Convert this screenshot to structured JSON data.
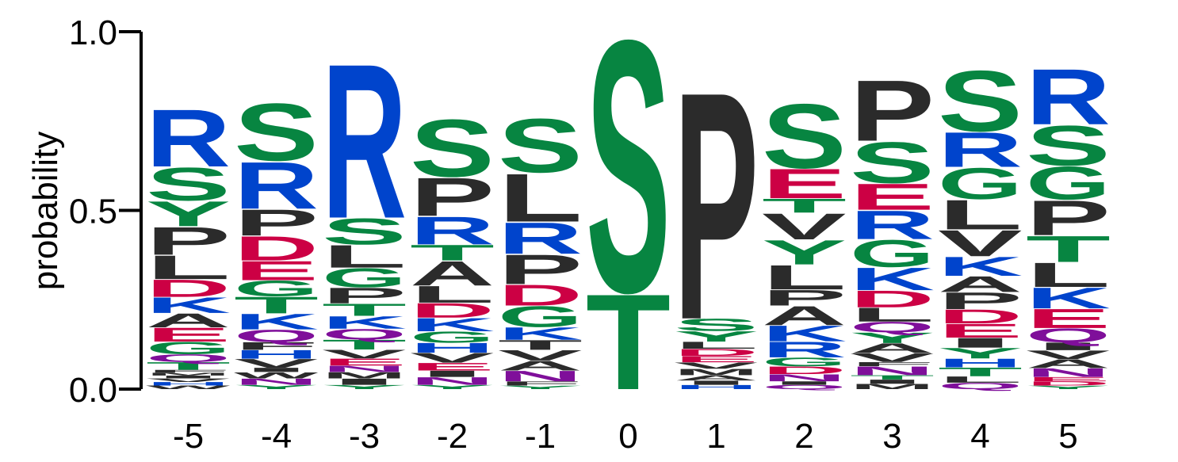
{
  "chart_data": {
    "type": "sequence-logo",
    "ylabel": "probability",
    "ylim": [
      0,
      1
    ],
    "yticks": [
      "0.0",
      "0.5",
      "1.0"
    ],
    "yticks_values": [
      0,
      0.5,
      1
    ],
    "colors": {
      "basic": "#0044cc",
      "polar": "#078541",
      "hydrophobic": "#2b2b2b",
      "acidic": "#cc0044",
      "amide": "#7f0f9a"
    },
    "positions": [
      {
        "label": "-5",
        "stack": [
          [
            "W",
            "hydrophobic",
            0.01
          ],
          [
            "H",
            "basic",
            0.01
          ],
          [
            "V",
            "hydrophobic",
            0.01
          ],
          [
            "I",
            "hydrophobic",
            0.008
          ],
          [
            "M",
            "hydrophobic",
            0.008
          ],
          [
            "F",
            "hydrophobic",
            0.008
          ],
          [
            "T",
            "polar",
            0.022
          ],
          [
            "Q",
            "amide",
            0.022
          ],
          [
            "G",
            "polar",
            0.035
          ],
          [
            "E",
            "acidic",
            0.04
          ],
          [
            "A",
            "hydrophobic",
            0.04
          ],
          [
            "K",
            "basic",
            0.045
          ],
          [
            "D",
            "acidic",
            0.05
          ],
          [
            "L",
            "hydrophobic",
            0.068
          ],
          [
            "P",
            "hydrophobic",
            0.08
          ],
          [
            "Y",
            "polar",
            0.072
          ],
          [
            "S",
            "polar",
            0.095
          ],
          [
            "R",
            "basic",
            0.165
          ]
        ]
      },
      {
        "label": "-4",
        "stack": [
          [
            "Y",
            "polar",
            0.012
          ],
          [
            "N",
            "amide",
            0.018
          ],
          [
            "W",
            "hydrophobic",
            0.018
          ],
          [
            "I",
            "hydrophobic",
            0.012
          ],
          [
            "V",
            "hydrophobic",
            0.025
          ],
          [
            "H",
            "basic",
            0.025
          ],
          [
            "F",
            "hydrophobic",
            0.022
          ],
          [
            "Q",
            "amide",
            0.035
          ],
          [
            "K",
            "basic",
            0.045
          ],
          [
            "T",
            "polar",
            0.048
          ],
          [
            "G",
            "polar",
            0.045
          ],
          [
            "E",
            "acidic",
            0.055
          ],
          [
            "D",
            "acidic",
            0.07
          ],
          [
            "P",
            "hydrophobic",
            0.075
          ],
          [
            "R",
            "basic",
            0.135
          ],
          [
            "S",
            "polar",
            0.165
          ]
        ]
      },
      {
        "label": "-3",
        "stack": [
          [
            "Y",
            "polar",
            0.012
          ],
          [
            "I",
            "hydrophobic",
            0.018
          ],
          [
            "M",
            "hydrophobic",
            0.018
          ],
          [
            "N",
            "amide",
            0.018
          ],
          [
            "E",
            "acidic",
            0.02
          ],
          [
            "V",
            "hydrophobic",
            0.025
          ],
          [
            "T",
            "polar",
            0.028
          ],
          [
            "Q",
            "amide",
            0.03
          ],
          [
            "K",
            "basic",
            0.036
          ],
          [
            "T",
            "polar",
            0.035
          ],
          [
            "P",
            "hydrophobic",
            0.045
          ],
          [
            "G",
            "polar",
            0.055
          ],
          [
            "L",
            "hydrophobic",
            0.065
          ],
          [
            "S",
            "polar",
            0.075
          ],
          [
            "R",
            "basic",
            0.445
          ]
        ]
      },
      {
        "label": "-2",
        "stack": [
          [
            "Y",
            "polar",
            0.012
          ],
          [
            "N",
            "amide",
            0.022
          ],
          [
            "I",
            "hydrophobic",
            0.018
          ],
          [
            "E",
            "acidic",
            0.022
          ],
          [
            "V",
            "hydrophobic",
            0.028
          ],
          [
            "H",
            "basic",
            0.028
          ],
          [
            "G",
            "polar",
            0.032
          ],
          [
            "K",
            "basic",
            0.038
          ],
          [
            "D",
            "acidic",
            0.042
          ],
          [
            "L",
            "hydrophobic",
            0.048
          ],
          [
            "A",
            "hydrophobic",
            0.07
          ],
          [
            "T",
            "polar",
            0.045
          ],
          [
            "R",
            "basic",
            0.08
          ],
          [
            "P",
            "hydrophobic",
            0.11
          ],
          [
            "S",
            "polar",
            0.165
          ]
        ]
      },
      {
        "label": "-1",
        "stack": [
          [
            "Y",
            "polar",
            0.01
          ],
          [
            "F",
            "hydrophobic",
            0.012
          ],
          [
            "N",
            "amide",
            0.03
          ],
          [
            "A",
            "hydrophobic",
            0.028
          ],
          [
            "V",
            "hydrophobic",
            0.03
          ],
          [
            "T",
            "hydrophobic",
            0.028
          ],
          [
            "K",
            "basic",
            0.036
          ],
          [
            "G",
            "polar",
            0.06
          ],
          [
            "D",
            "acidic",
            0.06
          ],
          [
            "P",
            "hydrophobic",
            0.085
          ],
          [
            "R",
            "basic",
            0.09
          ],
          [
            "L",
            "hydrophobic",
            0.138
          ],
          [
            "S",
            "polar",
            0.155
          ]
        ]
      },
      {
        "label": "0",
        "stack": [
          [
            "T",
            "polar",
            0.275
          ],
          [
            "S",
            "polar",
            0.725
          ]
        ]
      },
      {
        "label": "1",
        "stack": [
          [
            "H",
            "basic",
            0.012
          ],
          [
            "I",
            "hydrophobic",
            0.012
          ],
          [
            "A",
            "hydrophobic",
            0.015
          ],
          [
            "M",
            "hydrophobic",
            0.018
          ],
          [
            "V",
            "hydrophobic",
            0.018
          ],
          [
            "E",
            "acidic",
            0.018
          ],
          [
            "D",
            "acidic",
            0.02
          ],
          [
            "L",
            "hydrophobic",
            0.02
          ],
          [
            "Y",
            "polar",
            0.03
          ],
          [
            "S",
            "polar",
            0.035
          ],
          [
            "P",
            "hydrophobic",
            0.655
          ]
        ]
      },
      {
        "label": "2",
        "stack": [
          [
            "Q",
            "amide",
            0.012
          ],
          [
            "I",
            "hydrophobic",
            0.01
          ],
          [
            "N",
            "amide",
            0.02
          ],
          [
            "D",
            "acidic",
            0.022
          ],
          [
            "G",
            "polar",
            0.025
          ],
          [
            "R",
            "basic",
            0.045
          ],
          [
            "K",
            "basic",
            0.045
          ],
          [
            "A",
            "hydrophobic",
            0.055
          ],
          [
            "P",
            "hydrophobic",
            0.045
          ],
          [
            "L",
            "hydrophobic",
            0.07
          ],
          [
            "Y",
            "polar",
            0.07
          ],
          [
            "V",
            "hydrophobic",
            0.075
          ],
          [
            "T",
            "polar",
            0.04
          ],
          [
            "E",
            "acidic",
            0.085
          ],
          [
            "S",
            "polar",
            0.185
          ]
        ]
      },
      {
        "label": "3",
        "stack": [
          [
            "M",
            "hydrophobic",
            0.015
          ],
          [
            "I",
            "hydrophobic",
            0.012
          ],
          [
            "T",
            "polar",
            0.012
          ],
          [
            "N",
            "amide",
            0.025
          ],
          [
            "F",
            "hydrophobic",
            0.012
          ],
          [
            "V",
            "hydrophobic",
            0.025
          ],
          [
            "A",
            "hydrophobic",
            0.028
          ],
          [
            "Y",
            "polar",
            0.03
          ],
          [
            "Q",
            "amide",
            0.03
          ],
          [
            "L",
            "hydrophobic",
            0.04
          ],
          [
            "D",
            "acidic",
            0.048
          ],
          [
            "K",
            "basic",
            0.065
          ],
          [
            "G",
            "polar",
            0.078
          ],
          [
            "R",
            "basic",
            0.082
          ],
          [
            "E",
            "acidic",
            0.075
          ],
          [
            "S",
            "polar",
            0.118
          ],
          [
            "P",
            "hydrophobic",
            0.175
          ]
        ]
      },
      {
        "label": "4",
        "stack": [
          [
            "Q",
            "amide",
            0.018
          ],
          [
            "L",
            "hydrophobic",
            0.018
          ],
          [
            "T",
            "polar",
            0.025
          ],
          [
            "H",
            "basic",
            0.025
          ],
          [
            "Y",
            "polar",
            0.03
          ],
          [
            "I",
            "hydrophobic",
            0.028
          ],
          [
            "E",
            "acidic",
            0.04
          ],
          [
            "D",
            "acidic",
            0.04
          ],
          [
            "P",
            "hydrophobic",
            0.048
          ],
          [
            "A",
            "hydrophobic",
            0.045
          ],
          [
            "K",
            "basic",
            0.055
          ],
          [
            "V",
            "hydrophobic",
            0.075
          ],
          [
            "L",
            "hydrophobic",
            0.085
          ],
          [
            "G",
            "polar",
            0.09
          ],
          [
            "R",
            "basic",
            0.1
          ],
          [
            "S",
            "polar",
            0.175
          ]
        ]
      },
      {
        "label": "5",
        "stack": [
          [
            "Y",
            "polar",
            0.01
          ],
          [
            "D",
            "acidic",
            0.012
          ],
          [
            "E",
            "acidic",
            0.012
          ],
          [
            "N",
            "amide",
            0.025
          ],
          [
            "A",
            "hydrophobic",
            0.025
          ],
          [
            "V",
            "hydrophobic",
            0.025
          ],
          [
            "I",
            "hydrophobic",
            0.022
          ],
          [
            "Q",
            "amide",
            0.04
          ],
          [
            "E",
            "acidic",
            0.055
          ],
          [
            "K",
            "basic",
            0.06
          ],
          [
            "L",
            "hydrophobic",
            0.07
          ],
          [
            "T",
            "polar",
            0.075
          ],
          [
            "P",
            "hydrophobic",
            0.1
          ],
          [
            "G",
            "polar",
            0.095
          ],
          [
            "S",
            "polar",
            0.115
          ],
          [
            "R",
            "basic",
            0.16
          ]
        ]
      }
    ]
  }
}
